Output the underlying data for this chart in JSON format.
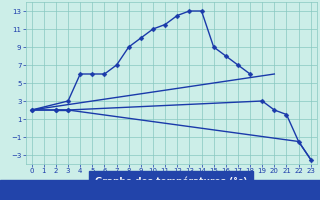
{
  "xlabel": "Graphe des températures (°c)",
  "x": [
    0,
    1,
    2,
    3,
    4,
    5,
    6,
    7,
    8,
    9,
    10,
    11,
    12,
    13,
    14,
    15,
    16,
    17,
    18,
    19,
    20,
    21,
    22,
    23
  ],
  "curves": [
    {
      "y": [
        2,
        null,
        null,
        3,
        6,
        6,
        6,
        7,
        9,
        10,
        11,
        11.5,
        12.5,
        13,
        13,
        9,
        8,
        7,
        6,
        null,
        null,
        null,
        null,
        null
      ],
      "has_markers": true
    },
    {
      "y": [
        null,
        null,
        null,
        null,
        null,
        null,
        null,
        null,
        null,
        null,
        null,
        null,
        null,
        null,
        null,
        null,
        null,
        null,
        null,
        null,
        null,
        null,
        null,
        null
      ],
      "has_markers": false
    },
    {
      "y": [
        2,
        null,
        2,
        2,
        null,
        null,
        null,
        null,
        null,
        null,
        null,
        null,
        null,
        null,
        null,
        null,
        null,
        null,
        null,
        3,
        2,
        1.5,
        -1.5,
        -3.5
      ],
      "has_markers": false
    },
    {
      "y": [
        2,
        null,
        2,
        2,
        null,
        null,
        null,
        null,
        null,
        null,
        null,
        null,
        null,
        null,
        null,
        null,
        null,
        null,
        null,
        null,
        null,
        null,
        -1.5,
        -3.5
      ],
      "has_markers": false
    }
  ],
  "line_color": "#1a3aaa",
  "bg_color": "#cceee8",
  "grid_color": "#88c8c0",
  "xlabel_bg": "#2244aa",
  "ylim": [
    -4,
    14
  ],
  "yticks": [
    -3,
    -1,
    1,
    3,
    5,
    7,
    9,
    11,
    13
  ],
  "xlim": [
    -0.5,
    23.5
  ],
  "xticks": [
    0,
    1,
    2,
    3,
    4,
    5,
    6,
    7,
    8,
    9,
    10,
    11,
    12,
    13,
    14,
    15,
    16,
    17,
    18,
    19,
    20,
    21,
    22,
    23
  ]
}
